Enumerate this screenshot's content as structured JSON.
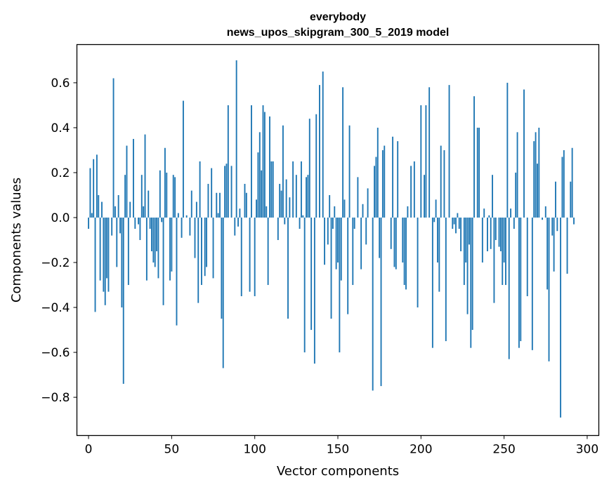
{
  "chart_data": {
    "type": "bar",
    "title_line1": "everybody",
    "title_line2": "news_upos_skipgram_300_5_2019 model",
    "xlabel": "Vector components",
    "ylabel": "Components values",
    "xlim": [
      -7,
      307
    ],
    "ylim": [
      -0.97,
      0.77
    ],
    "xticks": [
      0,
      50,
      100,
      150,
      200,
      250,
      300
    ],
    "xtick_labels": [
      "0",
      "50",
      "100",
      "150",
      "200",
      "250",
      "300"
    ],
    "yticks": [
      -0.8,
      -0.6,
      -0.4,
      -0.2,
      0.0,
      0.2,
      0.4,
      0.6
    ],
    "ytick_labels": [
      "−0.8",
      "−0.6",
      "−0.4",
      "−0.2",
      "0.0",
      "0.2",
      "0.4",
      "0.6"
    ],
    "bar_color": "#1f77b4",
    "grid": false,
    "x_start": 0,
    "values": [
      -0.05,
      0.22,
      0.02,
      0.26,
      -0.42,
      0.28,
      0.1,
      -0.28,
      0.07,
      -0.33,
      -0.39,
      -0.27,
      -0.33,
      0.0,
      -0.08,
      0.62,
      0.05,
      -0.22,
      0.1,
      -0.07,
      -0.4,
      -0.74,
      0.19,
      0.32,
      -0.3,
      0.07,
      0.0,
      0.35,
      -0.05,
      0.0,
      -0.03,
      -0.1,
      0.19,
      0.05,
      0.37,
      -0.28,
      0.12,
      -0.05,
      -0.15,
      -0.2,
      -0.22,
      -0.15,
      -0.27,
      0.21,
      -0.02,
      -0.39,
      0.31,
      0.2,
      0.0,
      -0.28,
      -0.24,
      0.19,
      0.18,
      -0.48,
      0.02,
      0.0,
      -0.09,
      0.52,
      0.0,
      0.01,
      0.0,
      -0.08,
      0.12,
      0.0,
      -0.18,
      0.07,
      -0.38,
      0.25,
      -0.3,
      0.0,
      -0.26,
      -0.22,
      0.15,
      0.0,
      0.22,
      -0.27,
      0.0,
      0.11,
      0.02,
      0.11,
      -0.45,
      -0.67,
      0.23,
      0.24,
      0.5,
      0.0,
      0.23,
      0.0,
      -0.08,
      0.7,
      -0.04,
      0.04,
      -0.35,
      0.0,
      0.15,
      0.11,
      0.0,
      -0.33,
      0.5,
      0.0,
      -0.35,
      0.08,
      0.29,
      0.38,
      0.21,
      0.5,
      0.47,
      0.05,
      -0.3,
      0.45,
      0.25,
      0.25,
      0.0,
      0.0,
      -0.1,
      0.15,
      0.12,
      0.41,
      -0.03,
      0.17,
      -0.45,
      0.09,
      0.0,
      0.25,
      0.0,
      0.19,
      0.0,
      -0.05,
      0.25,
      0.01,
      -0.6,
      0.18,
      0.19,
      0.44,
      -0.5,
      0.0,
      -0.65,
      0.46,
      0.0,
      0.59,
      0.0,
      0.65,
      -0.21,
      0.0,
      -0.12,
      0.1,
      -0.45,
      -0.05,
      0.05,
      -0.23,
      -0.2,
      -0.6,
      -0.28,
      0.58,
      0.08,
      0.0,
      -0.43,
      0.41,
      0.0,
      -0.3,
      -0.05,
      0.0,
      0.18,
      0.0,
      -0.23,
      0.06,
      0.0,
      -0.12,
      0.13,
      0.0,
      0.0,
      -0.77,
      0.23,
      0.27,
      0.4,
      -0.18,
      -0.75,
      0.3,
      0.32,
      0.0,
      0.0,
      0.0,
      -0.14,
      0.36,
      -0.22,
      -0.23,
      0.34,
      0.0,
      0.0,
      -0.2,
      -0.3,
      -0.32,
      0.05,
      0.0,
      0.23,
      0.0,
      0.25,
      0.0,
      -0.4,
      0.0,
      0.5,
      0.0,
      0.19,
      0.5,
      0.0,
      0.58,
      0.0,
      -0.58,
      -0.02,
      0.08,
      -0.2,
      -0.33,
      0.32,
      0.0,
      0.3,
      -0.55,
      0.0,
      0.59,
      0.0,
      -0.05,
      -0.03,
      -0.07,
      0.02,
      -0.05,
      -0.15,
      0.0,
      -0.3,
      -0.2,
      -0.43,
      -0.12,
      -0.58,
      -0.5,
      0.54,
      0.0,
      0.4,
      0.4,
      0.0,
      -0.2,
      0.04,
      0.0,
      -0.15,
      0.01,
      -0.14,
      0.19,
      -0.38,
      -0.1,
      0.0,
      -0.13,
      -0.15,
      -0.3,
      -0.2,
      -0.3,
      0.6,
      -0.63,
      0.04,
      0.0,
      -0.05,
      0.2,
      0.38,
      -0.58,
      -0.55,
      0.0,
      0.57,
      0.0,
      -0.35,
      0.0,
      0.0,
      -0.59,
      0.34,
      0.38,
      0.24,
      0.4,
      0.0,
      -0.01,
      0.0,
      0.05,
      -0.32,
      -0.64,
      0.0,
      -0.08,
      -0.24,
      0.16,
      -0.06,
      0.0,
      -0.89,
      0.27,
      0.3,
      0.0,
      -0.25,
      0.0,
      0.16,
      0.31,
      -0.03
    ]
  }
}
